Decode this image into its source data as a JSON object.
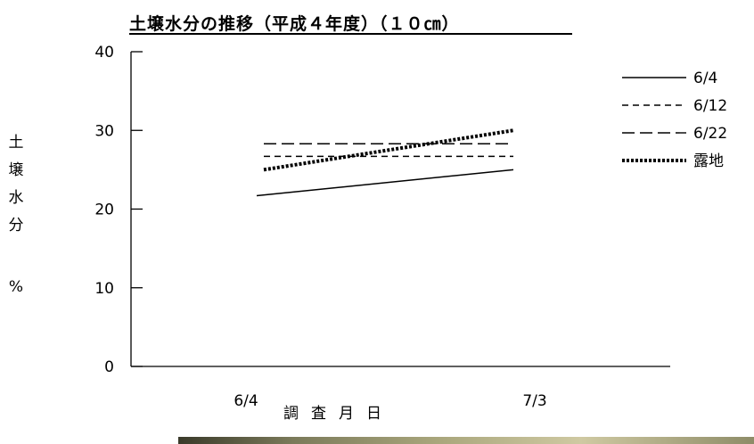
{
  "chart_data": {
    "type": "line",
    "title": "土壌水分の推移（平成４年度）（１０㎝）",
    "xlabel": "調査月日",
    "ylabel": [
      "土",
      "壌",
      "水",
      "分",
      "%"
    ],
    "categories": [
      "6/4",
      "7/3"
    ],
    "ylim": [
      0,
      40
    ],
    "yticks": [
      0,
      10,
      20,
      30,
      40
    ],
    "grid": false,
    "legend_position": "right",
    "series": [
      {
        "name": "6/4",
        "values": [
          21.7,
          25.0
        ],
        "style": "solid",
        "color": "#000000"
      },
      {
        "name": "6/12",
        "values": [
          26.7,
          26.7
        ],
        "style": "dashed",
        "color": "#000000"
      },
      {
        "name": "6/22",
        "values": [
          28.3,
          28.3
        ],
        "style": "longdash",
        "color": "#000000"
      },
      {
        "name": "露地",
        "values": [
          25.0,
          30.0
        ],
        "style": "thick-dotted",
        "color": "#000000"
      }
    ]
  }
}
